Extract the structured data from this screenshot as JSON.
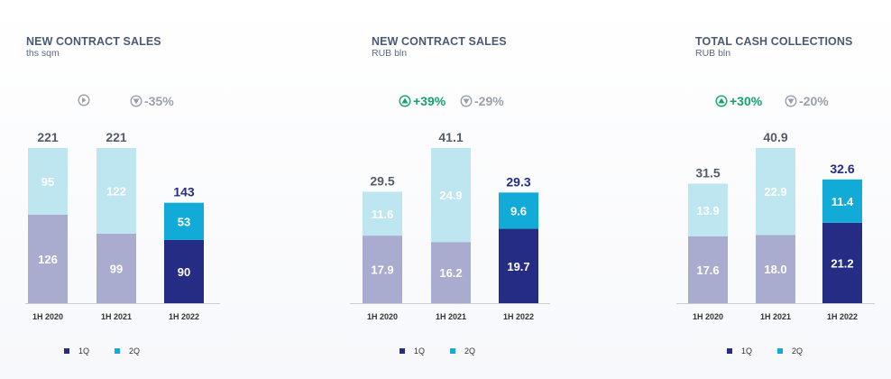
{
  "colors": {
    "q1_prior": "#a9acce",
    "q2_prior": "#bde6f1",
    "q1_current": "#252c84",
    "q2_current": "#12abd8",
    "green": "#16a36b",
    "grey": "#9aa0aa",
    "total_prior": "#555c68",
    "total_current": "#252c84"
  },
  "chart_data": [
    {
      "type": "bar",
      "title": "NEW CONTRACT SALES",
      "subtitle": "ths sqm",
      "categories": [
        "1H 2020",
        "1H 2021",
        "1H 2022"
      ],
      "series": [
        {
          "name": "1Q",
          "values": [
            126,
            99,
            90
          ]
        },
        {
          "name": "2Q",
          "values": [
            95,
            122,
            53
          ]
        }
      ],
      "totals": [
        "221",
        "221",
        "143"
      ],
      "q1_labels": [
        "126",
        "99",
        "90"
      ],
      "q2_labels": [
        "95",
        "122",
        "53"
      ],
      "changes": [
        {
          "icon": "play",
          "label": "",
          "color": "grey"
        },
        {
          "icon": "arrow-down",
          "label": "-35%",
          "color": "grey"
        }
      ],
      "stacked": true,
      "ylim": [
        0,
        221
      ],
      "legend": [
        "1Q",
        "2Q"
      ],
      "legend_position": "bottom"
    },
    {
      "type": "bar",
      "title": "NEW CONTRACT SALES",
      "subtitle": "RUB bln",
      "categories": [
        "1H 2020",
        "1H 2021",
        "1H 2022"
      ],
      "series": [
        {
          "name": "1Q",
          "values": [
            17.9,
            16.2,
            19.7
          ]
        },
        {
          "name": "2Q",
          "values": [
            11.6,
            24.9,
            9.6
          ]
        }
      ],
      "totals": [
        "29.5",
        "41.1",
        "29.3"
      ],
      "q1_labels": [
        "17.9",
        "16.2",
        "19.7"
      ],
      "q2_labels": [
        "11.6",
        "24.9",
        "9.6"
      ],
      "changes": [
        {
          "icon": "arrow-up",
          "label": "+39%",
          "color": "green"
        },
        {
          "icon": "arrow-down",
          "label": "-29%",
          "color": "grey"
        }
      ],
      "stacked": true,
      "ylim": [
        0,
        41.1
      ],
      "legend": [
        "1Q",
        "2Q"
      ],
      "legend_position": "bottom"
    },
    {
      "type": "bar",
      "title": "TOTAL CASH COLLECTIONS",
      "subtitle": "RUB bln",
      "categories": [
        "1H 2020",
        "1H 2021",
        "1H 2022"
      ],
      "series": [
        {
          "name": "1Q",
          "values": [
            17.6,
            18.0,
            21.2
          ]
        },
        {
          "name": "2Q",
          "values": [
            13.9,
            22.9,
            11.4
          ]
        }
      ],
      "totals": [
        "31.5",
        "40.9",
        "32.6"
      ],
      "q1_labels": [
        "17.6",
        "18.0",
        "21.2"
      ],
      "q2_labels": [
        "13.9",
        "22.9",
        "11.4"
      ],
      "changes": [
        {
          "icon": "arrow-up",
          "label": "+30%",
          "color": "green"
        },
        {
          "icon": "arrow-down",
          "label": "-20%",
          "color": "grey"
        }
      ],
      "stacked": true,
      "ylim": [
        0,
        40.9
      ],
      "legend": [
        "1Q",
        "2Q"
      ],
      "legend_position": "bottom"
    }
  ]
}
